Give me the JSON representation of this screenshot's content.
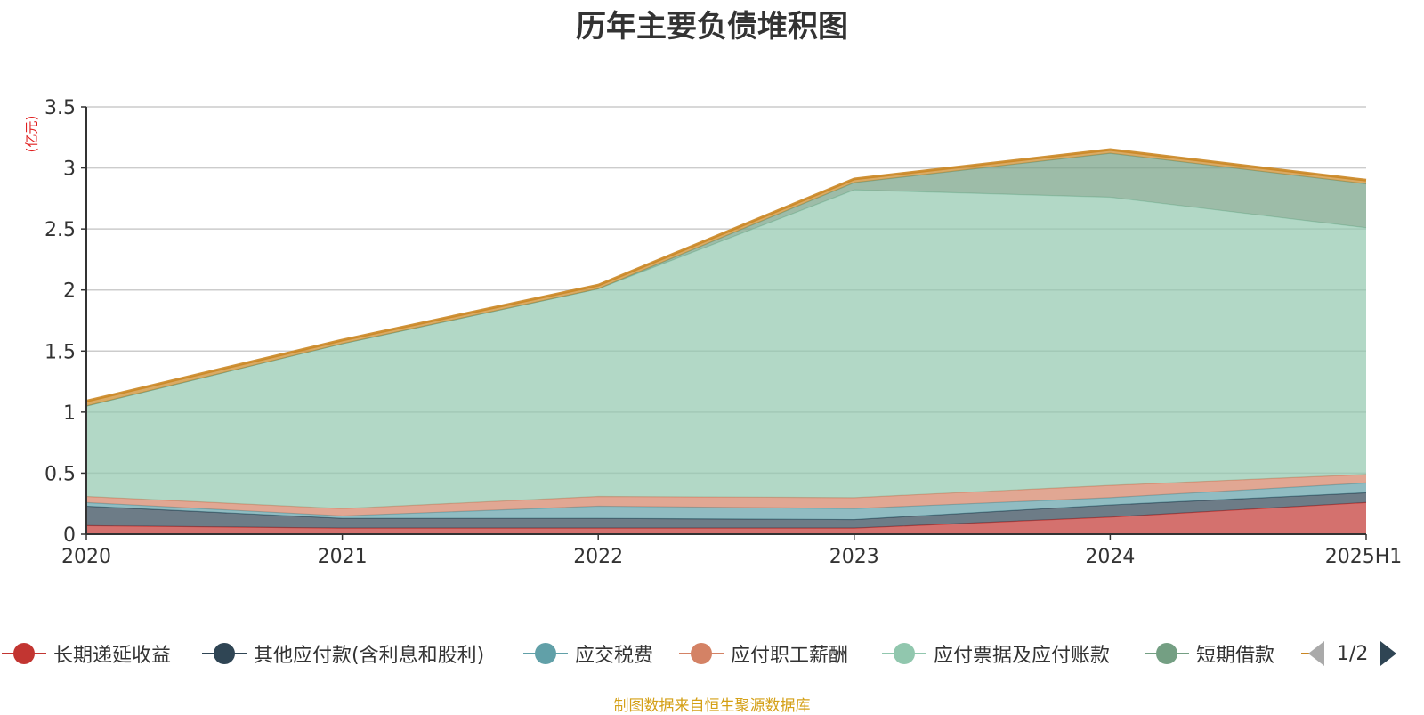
{
  "title": "历年主要负债堆积图",
  "unit_label": "(亿元)",
  "source_note": "制图数据来自恒生聚源数据库",
  "pager": {
    "label": "1/2"
  },
  "chart_data": {
    "type": "area",
    "stacked": true,
    "title": "历年主要负债堆积图",
    "ylabel": "(亿元)",
    "xlabel": "",
    "categories": [
      "2020",
      "2021",
      "2022",
      "2023",
      "2024",
      "2025H1"
    ],
    "ylim": [
      0,
      3.5
    ],
    "yticks": [
      "0",
      "0.5",
      "1",
      "1.5",
      "2",
      "2.5",
      "3",
      "3.5"
    ],
    "grid": true,
    "legend_position": "bottom",
    "series": [
      {
        "name": "长期递延收益",
        "color": "#c23531",
        "values": [
          0.07,
          0.05,
          0.05,
          0.05,
          0.14,
          0.26
        ]
      },
      {
        "name": "其他应付款(含利息和股利)",
        "color": "#2f4554",
        "values": [
          0.16,
          0.08,
          0.08,
          0.07,
          0.1,
          0.08
        ]
      },
      {
        "name": "应交税费",
        "color": "#61a0a8",
        "values": [
          0.03,
          0.02,
          0.1,
          0.09,
          0.06,
          0.08
        ]
      },
      {
        "name": "应付职工薪酬",
        "color": "#d48265",
        "values": [
          0.05,
          0.06,
          0.08,
          0.09,
          0.1,
          0.07
        ]
      },
      {
        "name": "应付票据及应付账款",
        "color": "#91c7ae",
        "values": [
          0.74,
          1.35,
          1.7,
          2.52,
          2.36,
          2.02
        ]
      },
      {
        "name": "短期借款",
        "color": "#749f83",
        "values": [
          0.0,
          0.0,
          0.0,
          0.06,
          0.36,
          0.36
        ]
      },
      {
        "name": "",
        "color": "#ca8622",
        "values": [
          0.04,
          0.03,
          0.03,
          0.03,
          0.03,
          0.03
        ]
      }
    ]
  }
}
